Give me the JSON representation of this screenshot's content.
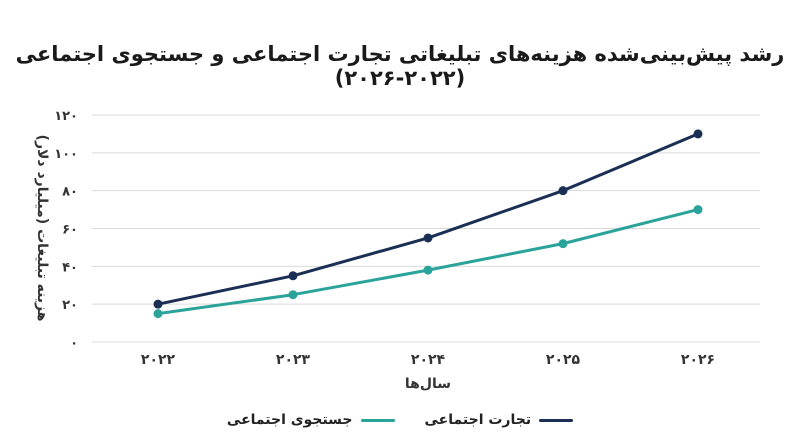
{
  "chart_data": {
    "type": "line",
    "title": "رشد پیش‌بینی‌شده هزینه‌های تبلیغاتی تجارت اجتماعی و جستجوی اجتماعی (۲۰۲۲-۲۰۲۶)",
    "xlabel": "سال‌ها",
    "ylabel": "هزینه تبلیغات (میلیارد دلار)",
    "x": [
      "۲۰۲۲",
      "۲۰۲۳",
      "۲۰۲۴",
      "۲۰۲۵",
      "۲۰۲۶"
    ],
    "ylim": [
      0,
      120
    ],
    "yticks": [
      0,
      20,
      40,
      60,
      80,
      100,
      120
    ],
    "ytick_labels": [
      "۰",
      "۲۰",
      "۴۰",
      "۶۰",
      "۸۰",
      "۱۰۰",
      "۱۲۰"
    ],
    "grid": "horizontal",
    "legend": "bottom",
    "series": [
      {
        "name": "تجارت اجتماعی",
        "color": "#1b2f55",
        "values": [
          20,
          35,
          55,
          80,
          110
        ]
      },
      {
        "name": "جستجوی اجتماعی",
        "color": "#2aa39a",
        "values": [
          15,
          25,
          38,
          52,
          70
        ]
      }
    ]
  }
}
